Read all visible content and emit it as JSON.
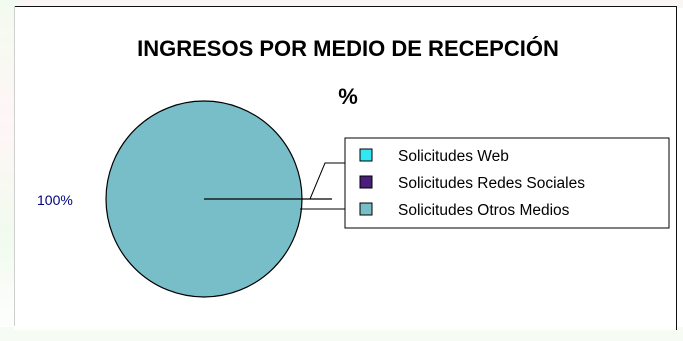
{
  "chart_data": {
    "type": "pie",
    "title": "INGRESOS POR MEDIO DE RECEPCIÓN",
    "subtitle": "%",
    "series": [
      {
        "name": "Solicitudes Web",
        "value": 0,
        "color": "#33e6f2"
      },
      {
        "name": "Solicitudes Redes Sociales",
        "value": 0,
        "color": "#4b1e7c"
      },
      {
        "name": "Solicitudes Otros Medios",
        "value": 100,
        "color": "#78bec8"
      }
    ],
    "data_labels": [
      "100%"
    ],
    "legend_position": "right"
  }
}
